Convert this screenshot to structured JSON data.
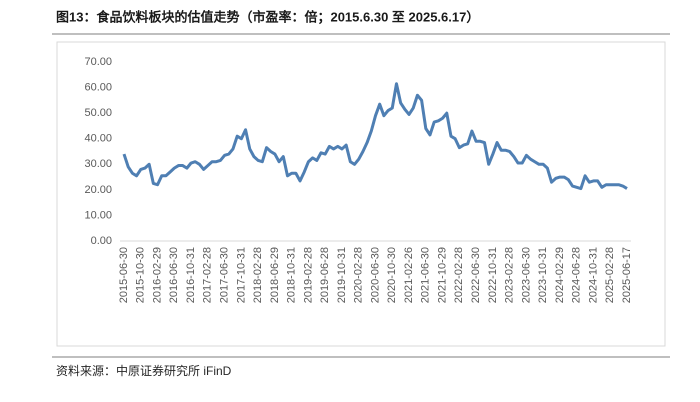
{
  "chart_data": {
    "type": "line",
    "title": "图13：食品饮料板块的估值走势（市盈率：倍；2015.6.30 至 2025.6.17）",
    "source": "资料来源：中原证券研究所 iFinD",
    "categories": [
      "2015-06-30",
      null,
      null,
      null,
      "2015-10-30",
      null,
      null,
      null,
      "2016-02-29",
      null,
      null,
      null,
      "2016-06-30",
      null,
      null,
      null,
      "2016-10-31",
      null,
      null,
      null,
      "2017-02-28",
      null,
      null,
      null,
      "2017-06-30",
      null,
      null,
      null,
      "2017-10-31",
      null,
      null,
      null,
      "2018-02-28",
      null,
      null,
      null,
      "2018-06-29",
      null,
      null,
      null,
      "2018-10-31",
      null,
      null,
      null,
      "2019-02-28",
      null,
      null,
      null,
      "2019-06-28",
      null,
      null,
      null,
      "2019-10-31",
      null,
      null,
      null,
      "2020-02-28",
      null,
      null,
      null,
      "2020-06-30",
      null,
      null,
      null,
      "2020-10-30",
      null,
      null,
      null,
      "2021-02-26",
      null,
      null,
      null,
      "2021-06-30",
      null,
      null,
      null,
      "2021-10-29",
      null,
      null,
      null,
      "2022-02-28",
      null,
      null,
      null,
      "2022-06-30",
      null,
      null,
      null,
      "2022-10-31",
      null,
      null,
      null,
      "2023-02-28",
      null,
      null,
      null,
      "2023-06-30",
      null,
      null,
      null,
      "2023-10-31",
      null,
      null,
      null,
      "2024-02-29",
      null,
      null,
      null,
      "2024-06-28",
      null,
      null,
      null,
      "2024-10-31",
      null,
      null,
      null,
      "2025-02-28",
      null,
      null,
      null,
      "2025-06-17"
    ],
    "series": [
      {
        "color": "#4f7fb3",
        "values": [
          34,
          29,
          26.5,
          25.5,
          28,
          28.5,
          30,
          22.5,
          22,
          25.5,
          25.5,
          27,
          28.5,
          29.5,
          29.5,
          28.5,
          30.5,
          31,
          30,
          28,
          29.5,
          31,
          31,
          31.5,
          33.5,
          34,
          36,
          41,
          40,
          43.5,
          36,
          33,
          31.5,
          31,
          36.5,
          35,
          34,
          31,
          33,
          25.5,
          26.5,
          26.5,
          23.5,
          27,
          31,
          32.5,
          31.5,
          34.5,
          34,
          37,
          36,
          37,
          36,
          37.5,
          31,
          30,
          32,
          35,
          38.5,
          43,
          49,
          53.5,
          49,
          51,
          52,
          61.5,
          54,
          51.5,
          49.5,
          52,
          57,
          55,
          44,
          41.5,
          46.5,
          47,
          48,
          50,
          41,
          40,
          36.5,
          37.5,
          38,
          43,
          39,
          39,
          38.5,
          30,
          34,
          38.5,
          35.5,
          35.5,
          35,
          33,
          30.5,
          30.5,
          33.5,
          32,
          31,
          30,
          30,
          28.5,
          23,
          24.5,
          25,
          25,
          24,
          21.5,
          21,
          20.5,
          25.5,
          23,
          23.5,
          23.5,
          21,
          22,
          22,
          22,
          22,
          21.5,
          20.5
        ]
      }
    ],
    "ylim": [
      0,
      70
    ],
    "yticks": [
      {
        "value": 0,
        "label": "0.00"
      },
      {
        "value": 10,
        "label": "10.00"
      },
      {
        "value": 20,
        "label": "20.00"
      },
      {
        "value": 30,
        "label": "30.00"
      },
      {
        "value": 40,
        "label": "40.00"
      },
      {
        "value": 50,
        "label": "50.00"
      },
      {
        "value": 60,
        "label": "60.00"
      },
      {
        "value": 70,
        "label": "70.00"
      }
    ]
  }
}
